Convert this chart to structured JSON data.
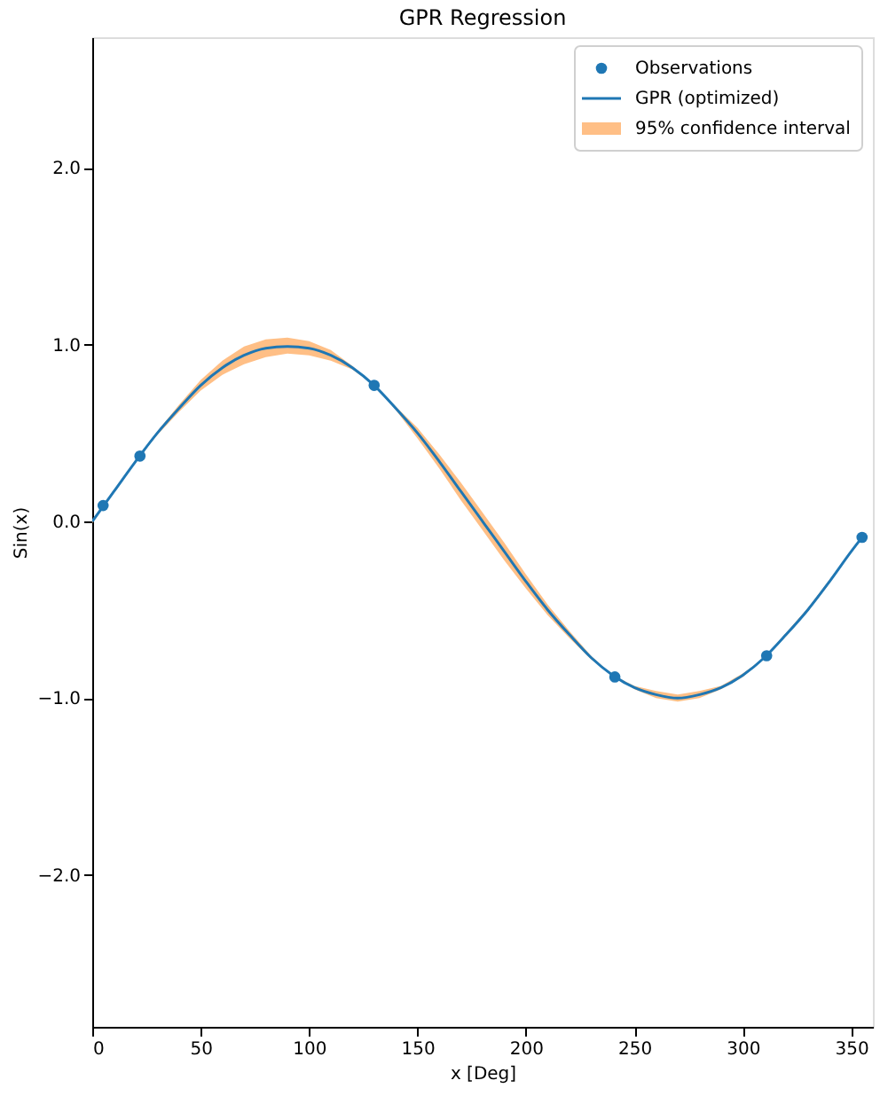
{
  "chart_data": {
    "type": "line",
    "title": "GPR Regression",
    "xlabel": "x [Deg]",
    "ylabel": "Sin(x)",
    "xlim": [
      0,
      360
    ],
    "xticks": [
      0,
      50,
      100,
      150,
      200,
      250,
      300,
      350
    ],
    "yticks": [
      {
        "value": -2,
        "label": "−2.0"
      },
      {
        "value": -1,
        "label": "−1.0"
      },
      {
        "value": 0,
        "label": "0.0"
      },
      {
        "value": 1,
        "label": "1.0"
      },
      {
        "value": 2,
        "label": "2.0"
      }
    ],
    "ylim": [
      -2.86,
      2.74
    ],
    "grid": false,
    "legend": "top right",
    "line_style": "solid",
    "series": [
      {
        "name": "Observations",
        "type": "scatter",
        "marker": "circle",
        "color": "#1f77b4",
        "x": [
          5,
          22,
          130,
          241,
          311,
          355
        ],
        "values": [
          0.09,
          0.37,
          0.77,
          -0.88,
          -0.76,
          -0.09
        ]
      },
      {
        "name": "GPR (optimized)",
        "marker": "none",
        "color": "#1f77b4",
        "x": [
          0,
          10,
          20,
          30,
          40,
          50,
          60,
          70,
          80,
          90,
          100,
          110,
          120,
          130,
          140,
          150,
          160,
          170,
          180,
          190,
          200,
          210,
          220,
          230,
          240,
          250,
          260,
          270,
          280,
          290,
          300,
          310,
          320,
          330,
          340,
          350,
          355
        ],
        "values": [
          0,
          0.17,
          0.34,
          0.5,
          0.64,
          0.77,
          0.87,
          0.94,
          0.98,
          0.99,
          0.98,
          0.94,
          0.87,
          0.77,
          0.64,
          0.5,
          0.34,
          0.17,
          0,
          -0.17,
          -0.34,
          -0.5,
          -0.64,
          -0.77,
          -0.87,
          -0.94,
          -0.98,
          -1,
          -0.98,
          -0.94,
          -0.87,
          -0.77,
          -0.64,
          -0.5,
          -0.34,
          -0.17,
          -0.09
        ],
        "lower": [
          -0.01,
          0.17,
          0.34,
          0.49,
          0.62,
          0.74,
          0.83,
          0.89,
          0.93,
          0.95,
          0.94,
          0.91,
          0.86,
          0.77,
          0.63,
          0.47,
          0.3,
          0.12,
          -0.05,
          -0.22,
          -0.38,
          -0.53,
          -0.66,
          -0.78,
          -0.87,
          -0.95,
          -1,
          -1.02,
          -1,
          -0.95,
          -0.88,
          -0.77,
          -0.65,
          -0.51,
          -0.35,
          -0.17,
          -0.09
        ],
        "upper": [
          0.01,
          0.17,
          0.34,
          0.51,
          0.66,
          0.8,
          0.91,
          0.99,
          1.03,
          1.04,
          1.02,
          0.97,
          0.88,
          0.77,
          0.65,
          0.53,
          0.38,
          0.22,
          0.05,
          -0.12,
          -0.3,
          -0.47,
          -0.62,
          -0.76,
          -0.87,
          -0.93,
          -0.96,
          -0.98,
          -0.96,
          -0.93,
          -0.86,
          -0.77,
          -0.63,
          -0.49,
          -0.33,
          -0.17,
          -0.09
        ]
      },
      {
        "name": "95% confidence interval",
        "type": "area",
        "color": "#ffbf86",
        "values": [
          null
        ]
      }
    ]
  }
}
